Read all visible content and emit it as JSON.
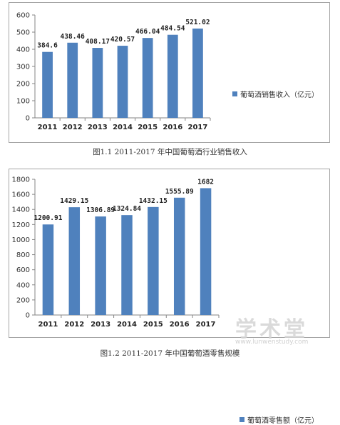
{
  "chart_data": [
    {
      "type": "bar",
      "categories": [
        "2011",
        "2012",
        "2013",
        "2014",
        "2015",
        "2016",
        "2017"
      ],
      "series": [
        {
          "name": "葡萄酒销售收入（亿元）",
          "values": [
            384.6,
            438.46,
            408.17,
            420.57,
            466.04,
            484.54,
            521.02
          ]
        }
      ],
      "value_labels": [
        "384.6",
        "438.46",
        "408.17",
        "420.57",
        "466.04",
        "484.54",
        "521.02"
      ],
      "yticks": [
        "0",
        "100",
        "200",
        "300",
        "400",
        "500",
        "600"
      ],
      "ylim": [
        0,
        600
      ],
      "grid": false,
      "legend_position": "right",
      "bar_color": "#4f81bd",
      "caption": "图1.1 2011-2017 年中国葡萄酒行业销售收入"
    },
    {
      "type": "bar",
      "categories": [
        "2011",
        "2012",
        "2013",
        "2014",
        "2015",
        "2016",
        "2017"
      ],
      "series": [
        {
          "name": "葡萄酒零售额（亿元）",
          "values": [
            1200.91,
            1429.15,
            1306.89,
            1324.84,
            1432.15,
            1555.89,
            1682
          ]
        }
      ],
      "value_labels": [
        "1200.91",
        "1429.15",
        "1306.89",
        "1324.84",
        "1432.15",
        "1555.89",
        "1682"
      ],
      "yticks": [
        "0",
        "200",
        "400",
        "600",
        "800",
        "1000",
        "1200",
        "1400",
        "1600",
        "1800"
      ],
      "ylim": [
        0,
        1800
      ],
      "grid": false,
      "legend_position": "right",
      "bar_color": "#4f81bd",
      "caption": "图1.2 2011-2017 年中国葡萄酒零售规模"
    }
  ],
  "watermark": {
    "text": "学术堂",
    "subtext": "www.lunwenstudy.com"
  }
}
